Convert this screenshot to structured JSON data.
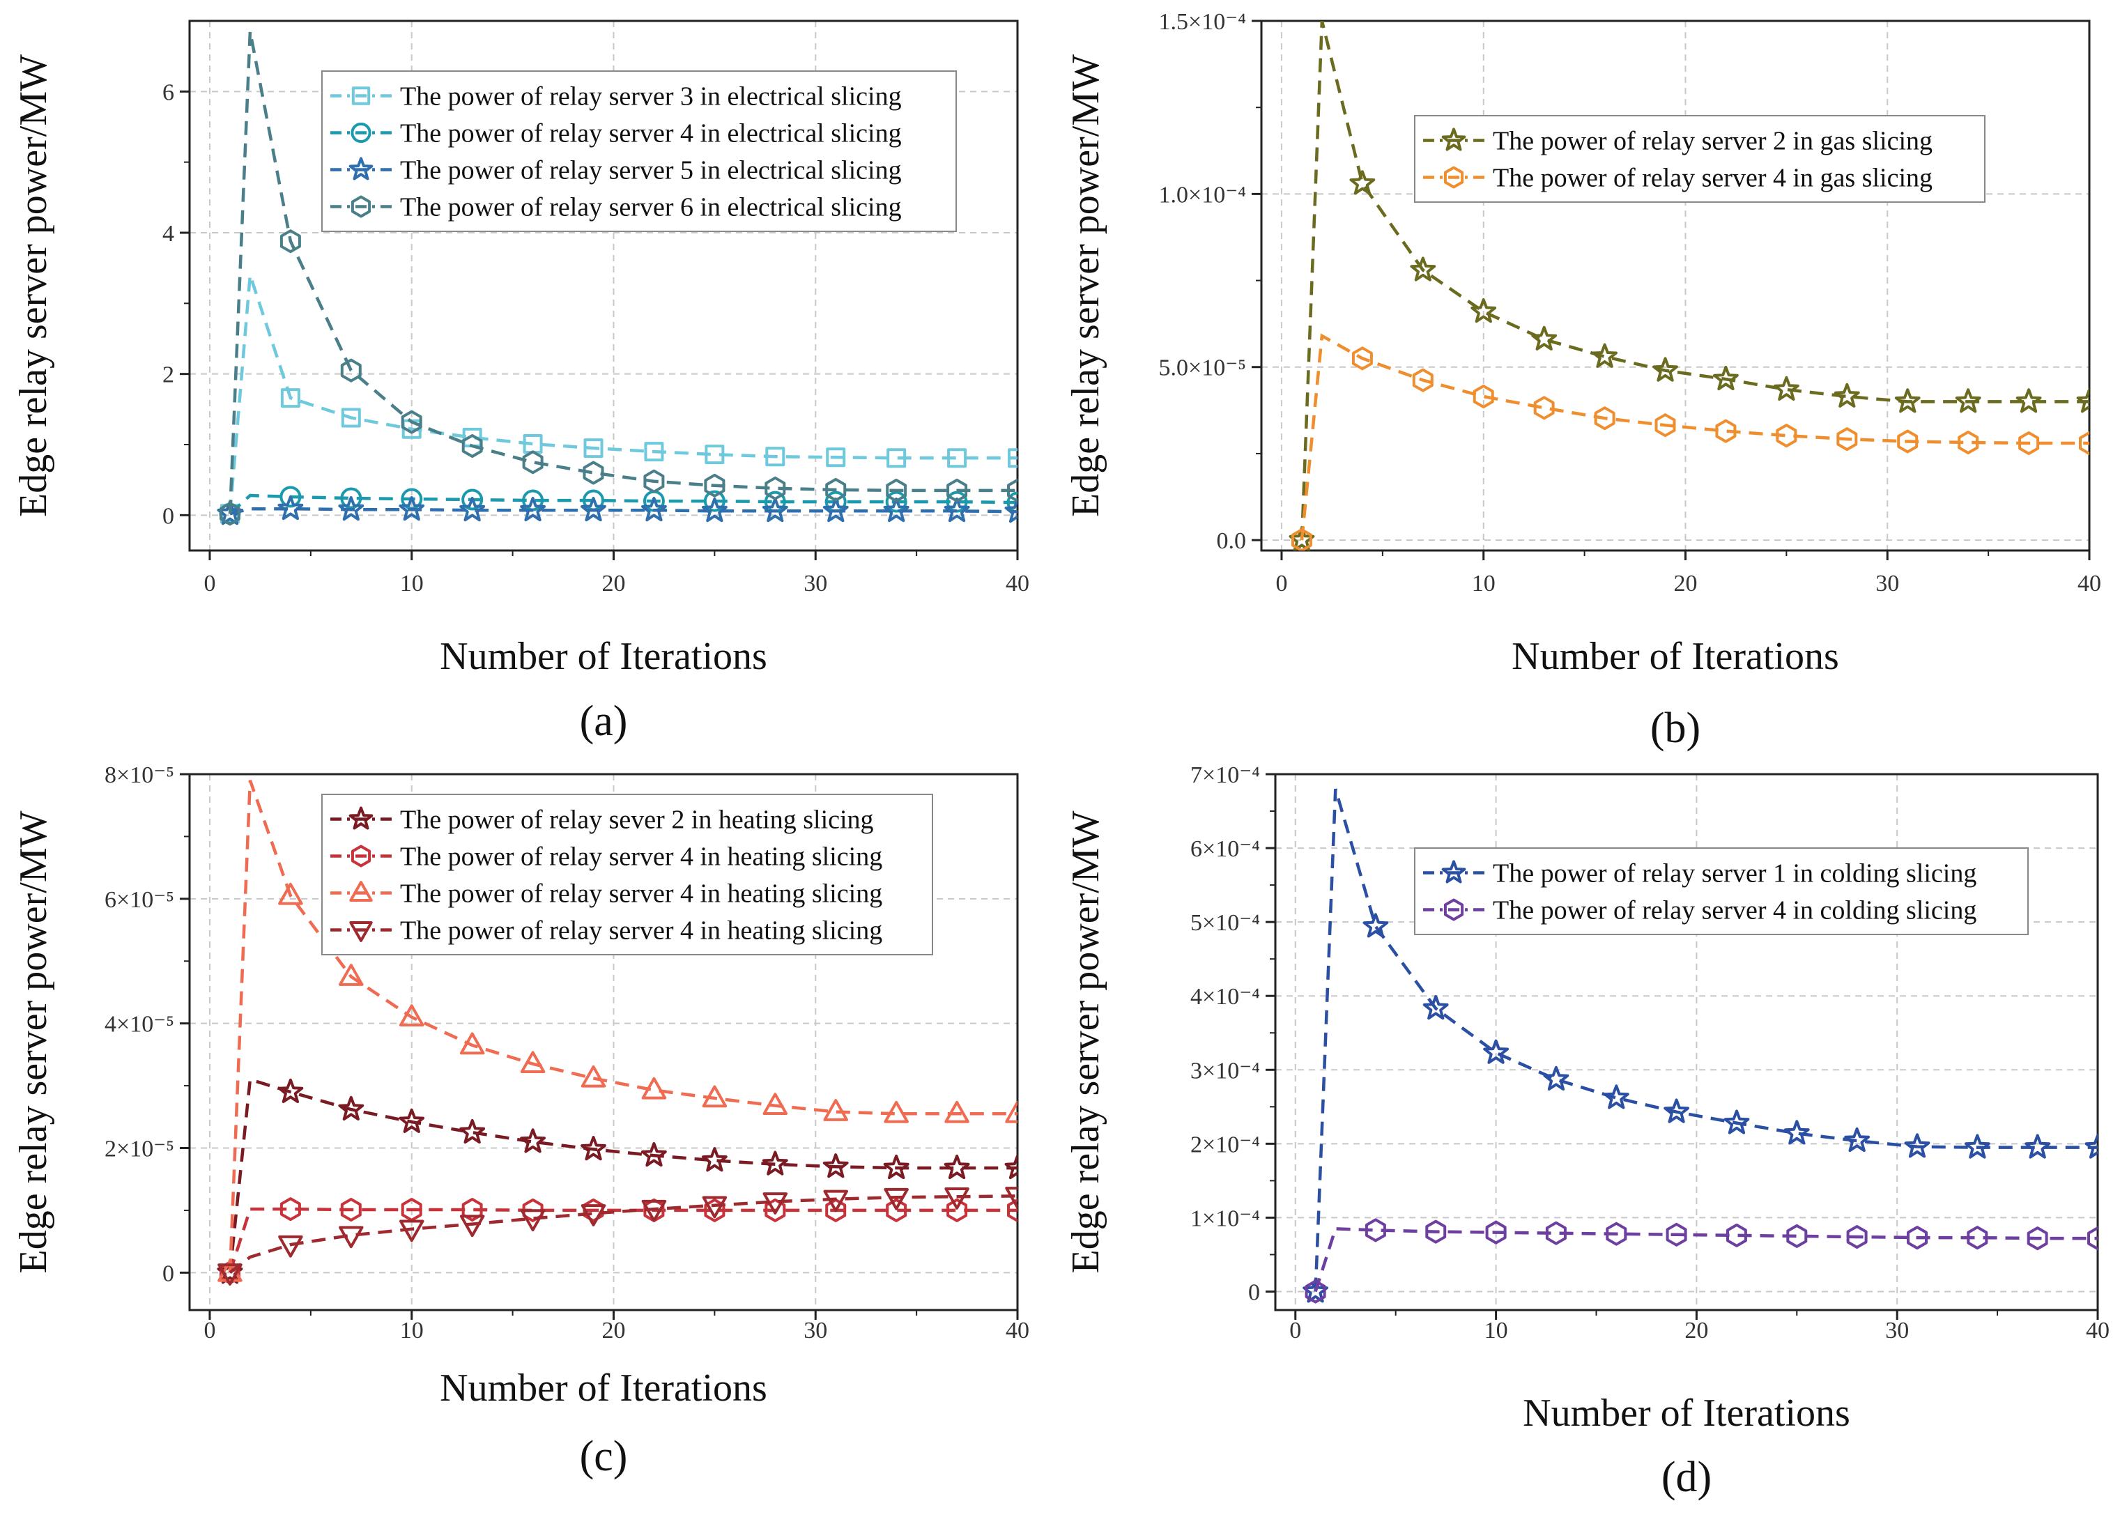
{
  "chart_data": [
    {
      "type": "line",
      "panel_label": "(a)",
      "xlabel": "Number of Iterations",
      "ylabel": "Edge relay server power/MW",
      "xlim": [
        -1,
        40
      ],
      "ylim": [
        -0.5,
        7.0
      ],
      "xticks": [
        0,
        10,
        20,
        30,
        40
      ],
      "xtick_labels": [
        "0",
        "10",
        "20",
        "30",
        "40"
      ],
      "yticks": [
        0,
        2,
        4,
        6
      ],
      "ytick_labels": [
        "0",
        "2",
        "4",
        "6"
      ],
      "grid": true,
      "legend_position": "top-right",
      "x": [
        1,
        2,
        4,
        7,
        10,
        13,
        16,
        19,
        22,
        25,
        28,
        31,
        34,
        37,
        40
      ],
      "series": [
        {
          "name": "The power of relay server 3 in electrical slicing",
          "color": "#6fc9dd",
          "marker": "square",
          "values": [
            0.02,
            3.4,
            1.66,
            1.38,
            1.22,
            1.1,
            1.01,
            0.95,
            0.9,
            0.86,
            0.83,
            0.82,
            0.81,
            0.81,
            0.81
          ]
        },
        {
          "name": "The power of relay server 4 in electrical slicing",
          "color": "#1c9aad",
          "marker": "circle",
          "values": [
            0.02,
            0.28,
            0.26,
            0.24,
            0.23,
            0.22,
            0.21,
            0.21,
            0.2,
            0.2,
            0.19,
            0.19,
            0.19,
            0.19,
            0.18
          ]
        },
        {
          "name": "The power of relay server 5 in electrical slicing",
          "color": "#2f6fae",
          "marker": "star",
          "values": [
            0.02,
            0.09,
            0.09,
            0.08,
            0.08,
            0.07,
            0.07,
            0.07,
            0.07,
            0.06,
            0.06,
            0.06,
            0.06,
            0.06,
            0.05
          ]
        },
        {
          "name": "The power of relay server 6 in electrical slicing",
          "color": "#4a7f8a",
          "marker": "hexagon",
          "values": [
            0.02,
            6.85,
            3.88,
            2.05,
            1.32,
            0.98,
            0.75,
            0.6,
            0.48,
            0.42,
            0.38,
            0.36,
            0.35,
            0.35,
            0.35
          ]
        }
      ]
    },
    {
      "type": "line",
      "panel_label": "(b)",
      "xlabel": "Number of Iterations",
      "ylabel": "Edge relay server power/MW",
      "xlim": [
        -1,
        40
      ],
      "ylim": [
        -3e-06,
        0.00015
      ],
      "xticks": [
        0,
        10,
        20,
        30,
        40
      ],
      "xtick_labels": [
        "0",
        "10",
        "20",
        "30",
        "40"
      ],
      "yticks": [
        0,
        5e-05,
        0.0001,
        0.00015
      ],
      "ytick_labels": [
        "0.0",
        "5.0×10⁻⁵",
        "1.0×10⁻⁴",
        "1.5×10⁻⁴"
      ],
      "grid": true,
      "legend_position": "top-right",
      "x": [
        1,
        2,
        4,
        7,
        10,
        13,
        16,
        19,
        22,
        25,
        28,
        31,
        34,
        37,
        40
      ],
      "series": [
        {
          "name": "The power of relay server 2 in gas slicing",
          "color": "#6b6b1f",
          "marker": "star",
          "values": [
            0.0,
            0.00015,
            0.000103,
            7.8e-05,
            6.6e-05,
            5.8e-05,
            5.3e-05,
            4.9e-05,
            4.65e-05,
            4.35e-05,
            4.15e-05,
            4e-05,
            4e-05,
            4e-05,
            4e-05
          ]
        },
        {
          "name": "The power of relay server 4 in gas slicing",
          "color": "#ef8e2e",
          "marker": "hexagon",
          "values": [
            0.0,
            5.9e-05,
            5.25e-05,
            4.62e-05,
            4.15e-05,
            3.82e-05,
            3.52e-05,
            3.32e-05,
            3.15e-05,
            3.02e-05,
            2.92e-05,
            2.85e-05,
            2.82e-05,
            2.8e-05,
            2.8e-05
          ]
        }
      ]
    },
    {
      "type": "line",
      "panel_label": "(c)",
      "xlabel": "Number of Iterations",
      "ylabel": "Edge relay server power/MW",
      "xlim": [
        -1,
        40
      ],
      "ylim": [
        -6e-06,
        8e-05
      ],
      "xticks": [
        0,
        10,
        20,
        30,
        40
      ],
      "xtick_labels": [
        "0",
        "10",
        "20",
        "30",
        "40"
      ],
      "yticks": [
        0,
        2e-05,
        4e-05,
        6e-05,
        8e-05
      ],
      "ytick_labels": [
        "0",
        "2×10⁻⁵",
        "4×10⁻⁵",
        "6×10⁻⁵",
        "8×10⁻⁵"
      ],
      "grid": true,
      "legend_position": "top-right",
      "x": [
        1,
        2,
        4,
        7,
        10,
        13,
        16,
        19,
        22,
        25,
        28,
        31,
        34,
        37,
        40
      ],
      "series": [
        {
          "name": "The power of relay sever 2 in heating slicing",
          "color": "#7a1a22",
          "marker": "star",
          "values": [
            0.0,
            3.1e-05,
            2.9e-05,
            2.62e-05,
            2.42e-05,
            2.25e-05,
            2.1e-05,
            1.98e-05,
            1.88e-05,
            1.8e-05,
            1.74e-05,
            1.7e-05,
            1.68e-05,
            1.68e-05,
            1.68e-05
          ]
        },
        {
          "name": "The power of relay server 4 in heating slicing",
          "color": "#c8323a",
          "marker": "hexagon",
          "values": [
            0.0,
            1.02e-05,
            1.02e-05,
            1.01e-05,
            1.01e-05,
            1.01e-05,
            1e-05,
            1e-05,
            1e-05,
            1e-05,
            1e-05,
            1e-05,
            1e-05,
            1e-05,
            1e-05
          ]
        },
        {
          "name": "The power of relay server 4 in heating slicing",
          "color": "#ef6b52",
          "marker": "triangle-up",
          "values": [
            0.0,
            7.9e-05,
            6.05e-05,
            4.75e-05,
            4.1e-05,
            3.65e-05,
            3.35e-05,
            3.12e-05,
            2.93e-05,
            2.8e-05,
            2.68e-05,
            2.58e-05,
            2.55e-05,
            2.55e-05,
            2.55e-05
          ]
        },
        {
          "name": "The power of relay server 4 in heating slicing",
          "color": "#9e2a2f",
          "marker": "triangle-down",
          "values": [
            0.0,
            2.5e-06,
            4.5e-06,
            6e-06,
            7e-06,
            7.8e-06,
            8.7e-06,
            9.5e-06,
            1.02e-05,
            1.08e-05,
            1.14e-05,
            1.18e-05,
            1.21e-05,
            1.22e-05,
            1.23e-05
          ]
        }
      ]
    },
    {
      "type": "line",
      "panel_label": "(d)",
      "xlabel": "Number of Iterations",
      "ylabel": "Edge relay server power/MW",
      "xlim": [
        -1,
        40
      ],
      "ylim": [
        -2.5e-05,
        0.0007
      ],
      "xticks": [
        0,
        10,
        20,
        30,
        40
      ],
      "xtick_labels": [
        "0",
        "10",
        "20",
        "30",
        "40"
      ],
      "yticks": [
        0,
        0.0001,
        0.0002,
        0.0003,
        0.0004,
        0.0005,
        0.0006,
        0.0007
      ],
      "ytick_labels": [
        "0",
        "1×10⁻⁴",
        "2×10⁻⁴",
        "3×10⁻⁴",
        "4×10⁻⁴",
        "5×10⁻⁴",
        "6×10⁻⁴",
        "7×10⁻⁴"
      ],
      "grid": true,
      "legend_position": "top-right",
      "x": [
        1,
        2,
        4,
        7,
        10,
        13,
        16,
        19,
        22,
        25,
        28,
        31,
        34,
        37,
        40
      ],
      "series": [
        {
          "name": "The power of relay server 1 in colding slicing",
          "color": "#2b4fa3",
          "marker": "star",
          "values": [
            0.0,
            0.00068,
            0.000494,
            0.000383,
            0.000323,
            0.000287,
            0.000262,
            0.000243,
            0.000228,
            0.000214,
            0.000204,
            0.000196,
            0.000195,
            0.000195,
            0.000195
          ]
        },
        {
          "name": "The power of relay server 4 in colding slicing",
          "color": "#6d3fa0",
          "marker": "hexagon",
          "values": [
            0.0,
            8.5e-05,
            8.3e-05,
            8.1e-05,
            8e-05,
            7.9e-05,
            7.8e-05,
            7.7e-05,
            7.6e-05,
            7.5e-05,
            7.4e-05,
            7.3e-05,
            7.3e-05,
            7.2e-05,
            7.2e-05
          ]
        }
      ]
    }
  ]
}
